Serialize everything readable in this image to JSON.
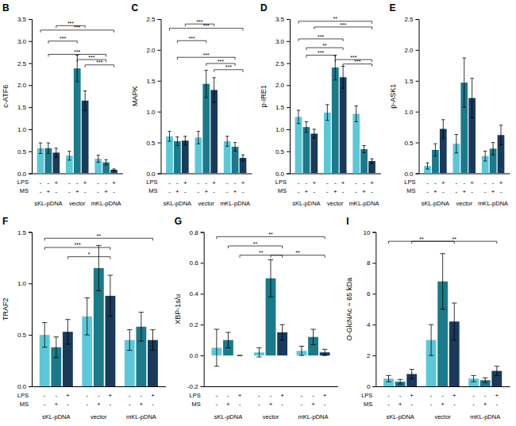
{
  "chart_data": [
    {
      "type": "bar",
      "title": "B",
      "ylabel": "c-ATF6",
      "categories": [
        "sKL-pDNA",
        "vector",
        "mKL-pDNA"
      ],
      "series": [
        {
          "color": "#5BC8D8",
          "values": [
            0.57,
            0.4,
            0.33
          ],
          "errors": [
            0.12,
            0.1,
            0.08
          ]
        },
        {
          "color": "#1A7A8A",
          "values": [
            0.57,
            2.38,
            0.25
          ],
          "errors": [
            0.12,
            0.3,
            0.06
          ]
        },
        {
          "color": "#1A3A5C",
          "values": [
            0.47,
            1.65,
            0.08
          ],
          "errors": [
            0.1,
            0.22,
            0.02
          ]
        }
      ],
      "ylim": [
        0,
        3.5
      ],
      "yticks": [
        {
          "value": 0,
          "label": "0.0"
        },
        0.5,
        {
          "value": 1,
          "label": "1.0"
        },
        1.5,
        {
          "value": 2,
          "label": "2.0"
        },
        2.5,
        {
          "value": 3,
          "label": "3.0"
        },
        3.5
      ],
      "grid": false,
      "bar_labels": [
        {
          "label": "LPS",
          "labels": [
            "-",
            "-",
            "+"
          ]
        },
        {
          "label": "MS",
          "labels": [
            "-",
            "+",
            "-"
          ]
        }
      ],
      "annotations": [
        {
          "text": "***",
          "y": 3.35,
          "from": [
            0,
            2
          ],
          "to": [
            1,
            2
          ]
        },
        {
          "text": "***",
          "y": 3.25,
          "from": [
            0,
            0
          ],
          "to": [
            2,
            2
          ]
        },
        {
          "text": "***",
          "y": 3.0,
          "from": [
            0,
            1
          ],
          "to": [
            1,
            1
          ]
        },
        {
          "text": "***",
          "y": 2.7,
          "from": [
            0,
            1
          ],
          "to": [
            2,
            1
          ]
        },
        {
          "text": "***",
          "y": 2.58,
          "from": [
            1,
            1
          ],
          "to": [
            2,
            1
          ]
        },
        {
          "text": "***",
          "y": 2.46,
          "from": [
            1,
            2
          ],
          "to": [
            2,
            2
          ]
        }
      ]
    },
    {
      "type": "bar",
      "title": "C",
      "ylabel": "MAPK",
      "categories": [
        "sKL-pDNA",
        "vector",
        "mKL-pDNA"
      ],
      "series": [
        {
          "color": "#5BC8D8",
          "values": [
            0.6,
            0.58,
            0.52
          ],
          "errors": [
            0.08,
            0.1,
            0.08
          ]
        },
        {
          "color": "#1A7A8A",
          "values": [
            0.52,
            1.45,
            0.43
          ],
          "errors": [
            0.07,
            0.22,
            0.07
          ]
        },
        {
          "color": "#1A3A5C",
          "values": [
            0.53,
            1.35,
            0.25
          ],
          "errors": [
            0.07,
            0.2,
            0.05
          ]
        }
      ],
      "ylim": [
        0,
        2.5
      ],
      "yticks": [
        {
          "value": 0,
          "label": "0.0"
        },
        0.5,
        {
          "value": 1,
          "label": "1.0"
        },
        1.5,
        {
          "value": 2,
          "label": "2.0"
        },
        2.5
      ],
      "grid": false,
      "bar_labels": [
        {
          "label": "LPS",
          "labels": [
            "-",
            "-",
            "+"
          ]
        },
        {
          "label": "MS",
          "labels": [
            "-",
            "+",
            "-"
          ]
        }
      ],
      "annotations": [
        {
          "text": "***",
          "y": 2.42,
          "from": [
            0,
            2
          ],
          "to": [
            1,
            2
          ]
        },
        {
          "text": "***",
          "y": 2.35,
          "from": [
            0,
            0
          ],
          "to": [
            2,
            2
          ]
        },
        {
          "text": "***",
          "y": 2.15,
          "from": [
            0,
            1
          ],
          "to": [
            1,
            1
          ]
        },
        {
          "text": "***",
          "y": 1.88,
          "from": [
            0,
            1
          ],
          "to": [
            2,
            1
          ]
        },
        {
          "text": "***",
          "y": 1.78,
          "from": [
            1,
            1
          ],
          "to": [
            2,
            1
          ]
        },
        {
          "text": "***",
          "y": 1.68,
          "from": [
            1,
            2
          ],
          "to": [
            2,
            2
          ]
        }
      ]
    },
    {
      "type": "bar",
      "title": "D",
      "ylabel": "p-IRE1",
      "categories": [
        "sKL-pDNA",
        "vector",
        "mKL-pDNA"
      ],
      "series": [
        {
          "color": "#5BC8D8",
          "values": [
            1.28,
            1.38,
            1.35
          ],
          "errors": [
            0.15,
            0.18,
            0.18
          ]
        },
        {
          "color": "#1A7A8A",
          "values": [
            1.05,
            2.4,
            0.55
          ],
          "errors": [
            0.12,
            0.28,
            0.08
          ]
        },
        {
          "color": "#1A3A5C",
          "values": [
            0.9,
            2.18,
            0.28
          ],
          "errors": [
            0.1,
            0.25,
            0.05
          ]
        }
      ],
      "ylim": [
        0,
        3.5
      ],
      "yticks": [
        {
          "value": 0,
          "label": "0.0"
        },
        0.5,
        {
          "value": 1,
          "label": "1.0"
        },
        1.5,
        {
          "value": 2,
          "label": "2.0"
        },
        2.5,
        {
          "value": 3,
          "label": "3.0"
        },
        3.5
      ],
      "grid": false,
      "bar_labels": [
        {
          "label": "LPS",
          "labels": [
            "-",
            "-",
            "+"
          ]
        },
        {
          "label": "MS",
          "labels": [
            "-",
            "+",
            "-"
          ]
        }
      ],
      "annotations": [
        {
          "text": "**",
          "y": 3.45,
          "from": [
            0,
            0
          ],
          "to": [
            2,
            2
          ]
        },
        {
          "text": "***",
          "y": 3.32,
          "from": [
            0,
            2
          ],
          "to": [
            2,
            2
          ]
        },
        {
          "text": "***",
          "y": 3.05,
          "from": [
            0,
            0
          ],
          "to": [
            1,
            2
          ]
        },
        {
          "text": "**",
          "y": 2.85,
          "from": [
            0,
            1
          ],
          "to": [
            1,
            2
          ]
        },
        {
          "text": "***",
          "y": 2.68,
          "from": [
            0,
            1
          ],
          "to": [
            1,
            1
          ]
        },
        {
          "text": "***",
          "y": 2.58,
          "from": [
            1,
            1
          ],
          "to": [
            2,
            2
          ]
        },
        {
          "text": "***",
          "y": 2.48,
          "from": [
            1,
            2
          ],
          "to": [
            2,
            2
          ]
        }
      ]
    },
    {
      "type": "bar",
      "title": "E",
      "ylabel": "p-ASK1",
      "categories": [
        "sKL-pDNA",
        "vector",
        "mKL-pDNA"
      ],
      "series": [
        {
          "color": "#5BC8D8",
          "values": [
            0.12,
            0.48,
            0.28
          ],
          "errors": [
            0.05,
            0.15,
            0.08
          ]
        },
        {
          "color": "#1A7A8A",
          "values": [
            0.38,
            1.47,
            0.4
          ],
          "errors": [
            0.1,
            0.4,
            0.1
          ]
        },
        {
          "color": "#1A3A5C",
          "values": [
            0.72,
            1.22,
            0.62
          ],
          "errors": [
            0.15,
            0.32,
            0.16
          ]
        }
      ],
      "ylim": [
        0,
        2.5
      ],
      "yticks": [
        {
          "value": 0,
          "label": "0.0"
        },
        0.5,
        {
          "value": 1,
          "label": "1.0"
        },
        1.5,
        {
          "value": 2,
          "label": "2.0"
        },
        2.5
      ],
      "grid": false,
      "bar_labels": [
        {
          "label": "LPS",
          "labels": [
            "-",
            "-",
            "+"
          ]
        },
        {
          "label": "MS",
          "labels": [
            "-",
            "+",
            "-"
          ]
        }
      ],
      "annotations": []
    },
    {
      "type": "bar",
      "title": "F",
      "ylabel": "TRAF2",
      "categories": [
        "sKL-pDNA",
        "vector",
        "mKL-pDNA"
      ],
      "series": [
        {
          "color": "#5BC8D8",
          "values": [
            0.5,
            0.68,
            0.45
          ],
          "errors": [
            0.12,
            0.18,
            0.1
          ]
        },
        {
          "color": "#1A7A8A",
          "values": [
            0.38,
            1.15,
            0.58
          ],
          "errors": [
            0.1,
            0.22,
            0.14
          ]
        },
        {
          "color": "#1A3A5C",
          "values": [
            0.53,
            0.88,
            0.45
          ],
          "errors": [
            0.12,
            0.2,
            0.1
          ]
        }
      ],
      "ylim": [
        0,
        1.5
      ],
      "yticks": [
        {
          "value": 0,
          "label": "0.0"
        },
        0.5,
        {
          "value": 1,
          "label": "1.0"
        },
        1.5
      ],
      "grid": false,
      "bar_labels": [
        {
          "label": "LPS",
          "labels": [
            "-",
            "-",
            "+"
          ]
        },
        {
          "label": "MS",
          "labels": [
            "-",
            "+",
            "-"
          ]
        }
      ],
      "annotations": [
        {
          "text": "**",
          "y": 1.44,
          "from": [
            0,
            0
          ],
          "to": [
            2,
            2
          ]
        },
        {
          "text": "***",
          "y": 1.35,
          "from": [
            0,
            0
          ],
          "to": [
            1,
            2
          ]
        },
        {
          "text": "*",
          "y": 1.26,
          "from": [
            0,
            2
          ],
          "to": [
            1,
            2
          ]
        }
      ]
    },
    {
      "type": "bar",
      "title": "G",
      "ylabel": "XBP-1s/u",
      "categories": [
        "sKL-pDNA",
        "vector",
        "mKL-pDNA"
      ],
      "series": [
        {
          "color": "#5BC8D8",
          "values": [
            0.05,
            0.02,
            0.03
          ],
          "errors": [
            0.12,
            0.03,
            0.03
          ]
        },
        {
          "color": "#1A7A8A",
          "values": [
            0.1,
            0.5,
            0.12
          ],
          "errors": [
            0.05,
            0.12,
            0.05
          ]
        },
        {
          "color": "#1A3A5C",
          "values": [
            0.0,
            0.15,
            0.02
          ],
          "errors": [
            0.0,
            0.05,
            0.02
          ]
        }
      ],
      "ylim": [
        -0.2,
        0.8
      ],
      "yticks": [
        -0.2,
        {
          "value": 0,
          "label": "0.0"
        },
        0.2,
        0.4,
        0.6,
        0.8
      ],
      "grid": false,
      "bar_labels": [
        {
          "label": "LPS",
          "labels": [
            "-",
            "-",
            "+"
          ]
        },
        {
          "label": "MS",
          "labels": [
            "-",
            "+",
            "-"
          ]
        }
      ],
      "annotations": [
        {
          "text": "**",
          "y": 0.77,
          "from": [
            0,
            0
          ],
          "to": [
            2,
            2
          ]
        },
        {
          "text": "**",
          "y": 0.71,
          "from": [
            0,
            1
          ],
          "to": [
            1,
            2
          ]
        },
        {
          "text": "**",
          "y": 0.65,
          "from": [
            0,
            2
          ],
          "to": [
            1,
            2
          ]
        },
        {
          "text": "**",
          "y": 0.65,
          "from": [
            1,
            1
          ],
          "to": [
            2,
            2
          ]
        }
      ]
    },
    {
      "type": "bar",
      "title": "I",
      "ylabel": "O-GlcNAc ~ 65 kDa",
      "categories": [
        "sKL-pDNA",
        "vector",
        "mKL-pDNA"
      ],
      "series": [
        {
          "color": "#5BC8D8",
          "values": [
            0.5,
            3.0,
            0.5
          ],
          "errors": [
            0.2,
            1.0,
            0.2
          ]
        },
        {
          "color": "#1A7A8A",
          "values": [
            0.3,
            6.8,
            0.4
          ],
          "errors": [
            0.15,
            1.8,
            0.15
          ]
        },
        {
          "color": "#1A3A5C",
          "values": [
            0.8,
            4.2,
            1.0
          ],
          "errors": [
            0.3,
            1.2,
            0.3
          ]
        }
      ],
      "ylim": [
        0,
        10
      ],
      "yticks": [
        0,
        2,
        4,
        6,
        8,
        10
      ],
      "grid": false,
      "bar_labels": [
        {
          "label": "LPS",
          "labels": [
            "-",
            "-",
            "+"
          ]
        },
        {
          "label": "MS",
          "labels": [
            "-",
            "+",
            "-"
          ]
        }
      ],
      "annotations": [
        {
          "text": "**",
          "y": 9.4,
          "from": [
            0,
            0
          ],
          "to": [
            1,
            2
          ]
        },
        {
          "text": "**",
          "y": 9.4,
          "from": [
            0,
            2
          ],
          "to": [
            2,
            2
          ]
        }
      ]
    }
  ]
}
